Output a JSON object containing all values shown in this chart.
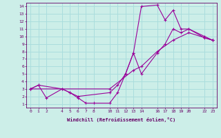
{
  "xlabel": "Windchill (Refroidissement éolien,°C)",
  "bg_color": "#cceee8",
  "line_color": "#990099",
  "grid_color": "#aadddd",
  "xlim": [
    -0.5,
    23.5
  ],
  "ylim": [
    0.5,
    14.5
  ],
  "xticks": [
    0,
    1,
    2,
    4,
    5,
    6,
    7,
    8,
    10,
    11,
    12,
    13,
    14,
    16,
    17,
    18,
    19,
    20,
    22,
    23
  ],
  "yticks": [
    1,
    2,
    3,
    4,
    5,
    6,
    7,
    8,
    9,
    10,
    11,
    12,
    13,
    14
  ],
  "line1_x": [
    0,
    1,
    2,
    4,
    5,
    6,
    7,
    8,
    10,
    11,
    12,
    13,
    14,
    16,
    17,
    18,
    19,
    20,
    22,
    23
  ],
  "line1_y": [
    3,
    3.5,
    1.8,
    3.0,
    2.5,
    1.8,
    1.1,
    1.1,
    1.1,
    2.5,
    5.0,
    7.8,
    14.0,
    14.2,
    12.2,
    13.5,
    11.0,
    11.0,
    10.0,
    9.5
  ],
  "line2_x": [
    0,
    1,
    4,
    5,
    6,
    10,
    11,
    12,
    13,
    14,
    16,
    17,
    18,
    19,
    20,
    22,
    23
  ],
  "line2_y": [
    3,
    3.5,
    3.0,
    2.5,
    2.0,
    2.5,
    3.5,
    5.0,
    7.8,
    5.0,
    7.8,
    9.0,
    11.0,
    10.5,
    11.0,
    9.8,
    9.5
  ],
  "line3_x": [
    0,
    10,
    13,
    14,
    16,
    18,
    20,
    23
  ],
  "line3_y": [
    3,
    3.0,
    5.5,
    6.0,
    8.0,
    9.5,
    10.5,
    9.5
  ]
}
